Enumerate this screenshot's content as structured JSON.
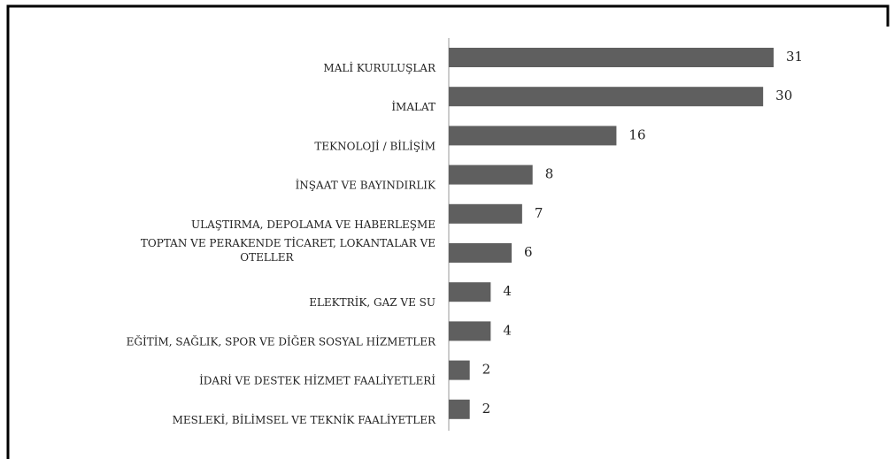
{
  "chart_data": {
    "type": "bar",
    "orientation": "horizontal",
    "color": "#5f5f5f",
    "categories": [
      "MALİ KURULUŞLAR",
      "İMALAT",
      "TEKNOLOJİ / BİLİŞİM",
      "İNŞAAT VE BAYINDIRLIK",
      "ULAŞTIRMA, DEPOLAMA VE HABERLEŞME",
      "TOPTAN VE PERAKENDE TİCARET, LOKANTALAR VE OTELLER",
      "ELEKTRİK, GAZ VE SU",
      "EĞİTİM, SAĞLIK, SPOR VE DİĞER SOSYAL HİZMETLER",
      "İDARİ VE DESTEK HİZMET FAALİYETLERİ",
      "MESLEKİ, BİLİMSEL VE TEKNİK FAALİYETLER"
    ],
    "values": [
      31,
      30,
      16,
      8,
      7,
      6,
      4,
      4,
      2,
      2
    ]
  }
}
